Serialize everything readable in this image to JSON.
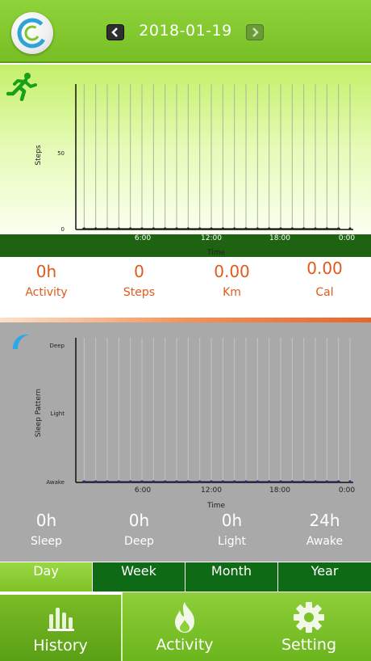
{
  "header": {
    "date": "2018-01-19",
    "logo_icon": "c-ring-logo-icon",
    "prev_icon": "chevron-left-icon",
    "next_icon": "chevron-right-icon"
  },
  "activity_chart": {
    "icon": "running-person-icon",
    "ylabel": "Steps",
    "yticks": [
      "0",
      "50"
    ],
    "xticks": [
      "6:00",
      "12:00",
      "18:00",
      "0:00"
    ],
    "xlabel": "Time"
  },
  "activity_stats": [
    {
      "value": "0h",
      "label": "Activity"
    },
    {
      "value": "0",
      "label": "Steps"
    },
    {
      "value": "0.00",
      "label": "Km"
    },
    {
      "value": "0.00",
      "label": "Cal"
    }
  ],
  "sleep_chart": {
    "icon": "moon-icon",
    "ylabel": "Sleep Pattern",
    "yticks": [
      "Deep",
      "Light",
      "Awake"
    ],
    "xticks": [
      "6:00",
      "12:00",
      "18:00",
      "0:00"
    ],
    "xlabel": "Time"
  },
  "sleep_stats": [
    {
      "value": "0h",
      "label": "Sleep"
    },
    {
      "value": "0h",
      "label": "Deep"
    },
    {
      "value": "0h",
      "label": "Light"
    },
    {
      "value": "24h",
      "label": "Awake"
    }
  ],
  "period_tabs": [
    {
      "label": "Day",
      "active": true
    },
    {
      "label": "Week",
      "active": false
    },
    {
      "label": "Month",
      "active": false
    },
    {
      "label": "Year",
      "active": false
    }
  ],
  "bottom_nav": [
    {
      "label": "History",
      "icon": "bar-chart-icon",
      "active": true
    },
    {
      "label": "Activity",
      "icon": "flame-icon",
      "active": false
    },
    {
      "label": "Setting",
      "icon": "gear-icon",
      "active": false
    }
  ],
  "colors": {
    "header_green": "#7fc52c",
    "dark_green": "#1d6312",
    "accent_orange": "#e05a1c",
    "sleep_gray": "#a9a9a9"
  },
  "chart_data": [
    {
      "type": "line",
      "x": [
        "6:00",
        "12:00",
        "18:00",
        "0:00"
      ],
      "series": [
        {
          "values": [
            0,
            0,
            0,
            0
          ]
        }
      ],
      "xlabel": "Time",
      "ylabel": "Steps",
      "ylim": [
        0,
        100
      ],
      "grid": true
    },
    {
      "type": "line",
      "x": [
        "6:00",
        "12:00",
        "18:00",
        "0:00"
      ],
      "series": [
        {
          "values": [
            "Awake",
            "Awake",
            "Awake",
            "Awake"
          ]
        }
      ],
      "xlabel": "Time",
      "ylabel": "Sleep Pattern",
      "categories": [
        "Awake",
        "Light",
        "Deep"
      ],
      "grid": true
    }
  ]
}
